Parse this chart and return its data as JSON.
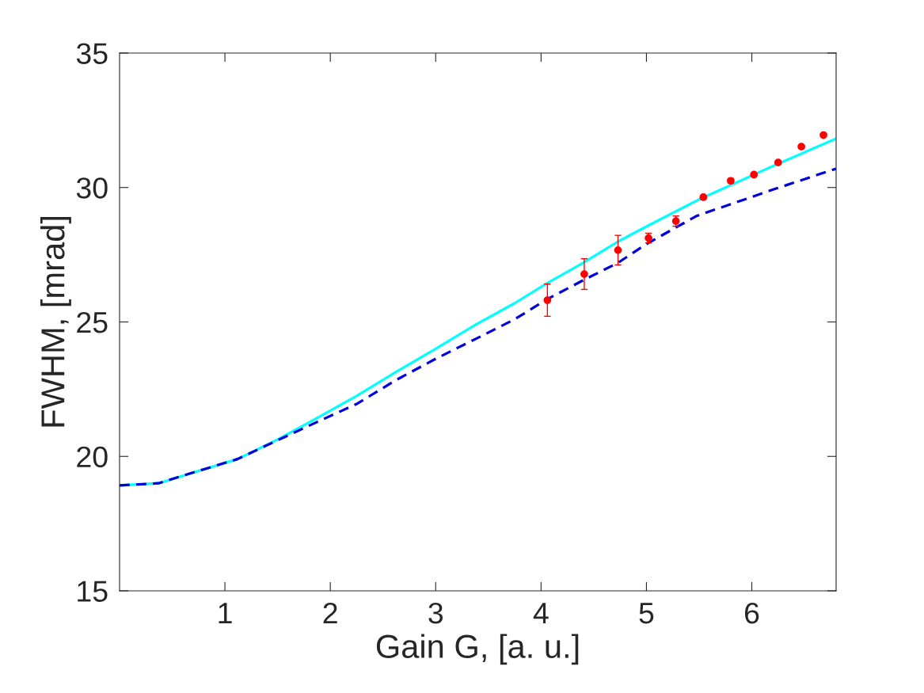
{
  "chart_data": {
    "type": "line",
    "xlabel": "Gain G, [a. u.]",
    "ylabel": "FWHM, [mrad]",
    "xlim": [
      0,
      6.8
    ],
    "ylim": [
      15,
      35
    ],
    "xticks": [
      1,
      2,
      3,
      4,
      5,
      6
    ],
    "yticks": [
      15,
      20,
      25,
      30,
      35
    ],
    "grid": false,
    "series": [
      {
        "color": "#00ffff",
        "line_style": "solid",
        "marker": "none",
        "x": [
          0,
          0.37,
          0.74,
          1.12,
          1.5,
          1.87,
          2.25,
          2.62,
          3.0,
          3.38,
          3.75,
          4.06,
          4.4,
          4.73,
          5.0,
          5.48,
          6.23,
          6.8
        ],
        "values": [
          18.92,
          19.0,
          19.45,
          19.9,
          20.63,
          21.42,
          22.25,
          23.13,
          24.0,
          24.9,
          25.7,
          26.45,
          27.2,
          27.99,
          28.55,
          29.52,
          30.85,
          31.82
        ]
      },
      {
        "color": "#0000dd",
        "line_style": "dashed",
        "marker": "none",
        "x": [
          0,
          0.37,
          0.74,
          1.12,
          1.5,
          1.87,
          2.25,
          2.62,
          3.0,
          3.38,
          3.75,
          4.06,
          4.4,
          4.73,
          5.0,
          5.48,
          6.23,
          6.8
        ],
        "values": [
          18.92,
          19.0,
          19.45,
          19.9,
          20.6,
          21.27,
          21.95,
          22.83,
          23.63,
          24.37,
          25.1,
          25.85,
          26.55,
          27.2,
          27.9,
          28.95,
          29.96,
          30.7
        ]
      },
      {
        "type": "scatter",
        "color": "#ff0000",
        "marker": "circle",
        "x": [
          4.06,
          4.41,
          4.73,
          5.02,
          5.28,
          5.54,
          5.8,
          6.02,
          6.25,
          6.47,
          6.68
        ],
        "values": [
          25.81,
          26.78,
          27.67,
          28.12,
          28.75,
          29.64,
          30.25,
          30.48,
          30.93,
          31.52,
          31.95
        ],
        "errors": [
          0.6,
          0.57,
          0.55,
          0.18,
          0.19,
          0.05,
          0.08,
          0.05,
          0.05,
          0.05,
          0.05
        ]
      }
    ]
  }
}
